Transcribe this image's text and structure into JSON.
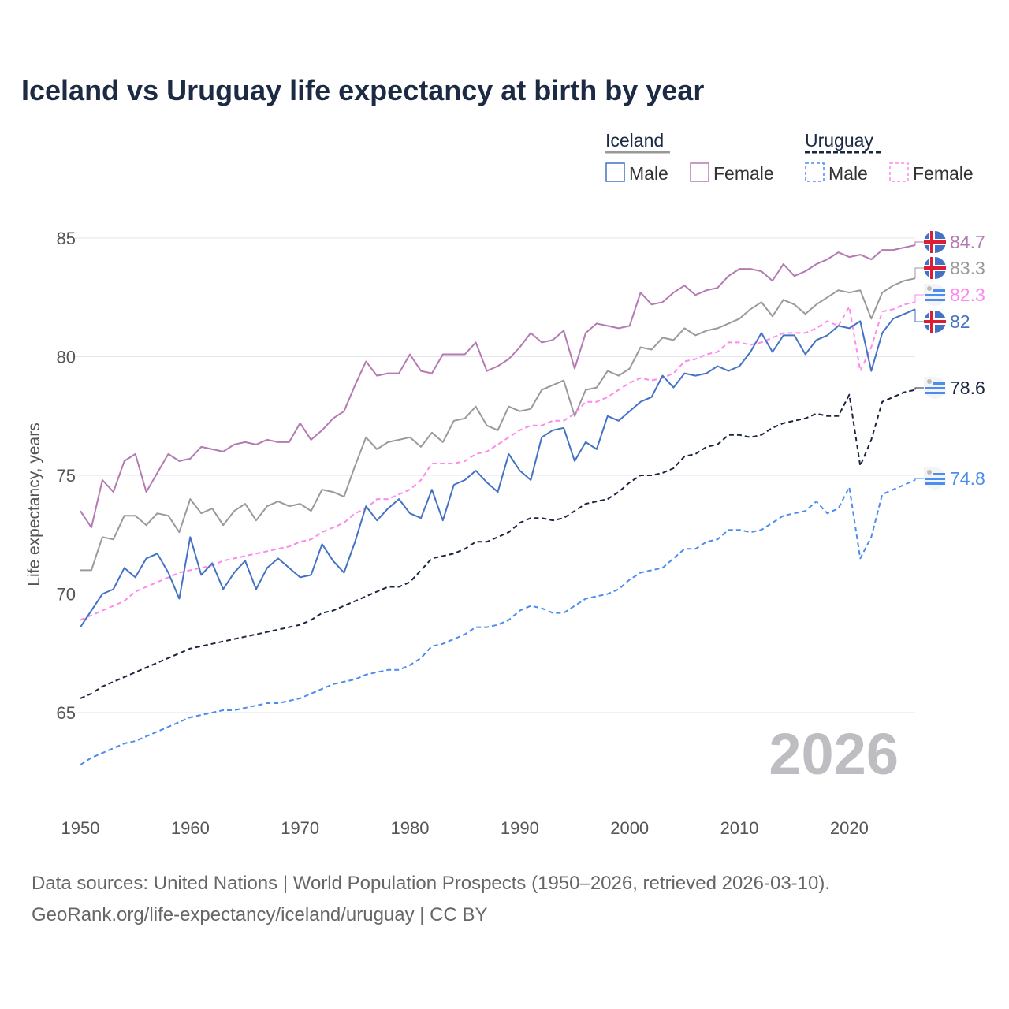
{
  "chart_data": {
    "type": "line",
    "title": "Iceland vs Uruguay life expectancy at birth by year",
    "xlabel": "",
    "ylabel": "Life expectancy, years",
    "xlim": [
      1950,
      2026
    ],
    "ylim": [
      62.5,
      86
    ],
    "x_ticks": [
      1950,
      1960,
      1970,
      1980,
      1990,
      2000,
      2010,
      2020
    ],
    "y_ticks": [
      65,
      70,
      75,
      80,
      85
    ],
    "grid": true,
    "legend_position": "top-right",
    "legend_groups": [
      {
        "name": "Iceland",
        "items": [
          "Male",
          "Female"
        ]
      },
      {
        "name": "Uruguay",
        "items": [
          "Male",
          "Female"
        ]
      }
    ],
    "watermark_year": "2026",
    "x_start": 1950,
    "series": [
      {
        "name": "Iceland Female",
        "country": "Iceland",
        "color": "#b47ab2",
        "dashed": false,
        "end_label": "84.7",
        "values": [
          73.5,
          72.8,
          74.8,
          74.3,
          75.6,
          75.9,
          74.3,
          75.1,
          75.9,
          75.6,
          75.7,
          76.2,
          76.1,
          76.0,
          76.3,
          76.4,
          76.3,
          76.5,
          76.4,
          76.4,
          77.2,
          76.5,
          76.9,
          77.4,
          77.7,
          78.8,
          79.8,
          79.2,
          79.3,
          79.3,
          80.1,
          79.4,
          79.3,
          80.1,
          80.1,
          80.1,
          80.6,
          79.4,
          79.6,
          79.9,
          80.4,
          81.0,
          80.6,
          80.7,
          81.1,
          79.5,
          81.0,
          81.4,
          81.3,
          81.2,
          81.3,
          82.7,
          82.2,
          82.3,
          82.7,
          83.0,
          82.6,
          82.8,
          82.9,
          83.4,
          83.7,
          83.7,
          83.6,
          83.2,
          83.9,
          83.4,
          83.6,
          83.9,
          84.1,
          84.4,
          84.2,
          84.3,
          84.1,
          84.5,
          84.5,
          84.6,
          84.7
        ]
      },
      {
        "name": "Iceland",
        "country": "Iceland",
        "color": "#9a9a9a",
        "dashed": false,
        "end_label": "83.3",
        "values": [
          71.0,
          71.0,
          72.4,
          72.3,
          73.3,
          73.3,
          72.9,
          73.4,
          73.3,
          72.6,
          74.0,
          73.4,
          73.6,
          72.9,
          73.5,
          73.8,
          73.1,
          73.7,
          73.9,
          73.7,
          73.8,
          73.5,
          74.4,
          74.3,
          74.1,
          75.4,
          76.6,
          76.1,
          76.4,
          76.5,
          76.6,
          76.2,
          76.8,
          76.4,
          77.3,
          77.4,
          77.9,
          77.1,
          76.9,
          77.9,
          77.7,
          77.8,
          78.6,
          78.8,
          79.0,
          77.5,
          78.6,
          78.7,
          79.4,
          79.2,
          79.5,
          80.4,
          80.3,
          80.8,
          80.7,
          81.2,
          80.9,
          81.1,
          81.2,
          81.4,
          81.6,
          82.0,
          82.3,
          81.7,
          82.4,
          82.2,
          81.8,
          82.2,
          82.5,
          82.8,
          82.7,
          82.8,
          81.6,
          82.7,
          83.0,
          83.2,
          83.3
        ]
      },
      {
        "name": "Uruguay Female",
        "country": "Uruguay",
        "color": "#ff88ee",
        "dashed": true,
        "end_label": "82.3",
        "values": [
          68.9,
          69.1,
          69.3,
          69.5,
          69.7,
          70.1,
          70.3,
          70.5,
          70.7,
          70.9,
          71.0,
          71.1,
          71.2,
          71.4,
          71.5,
          71.6,
          71.7,
          71.8,
          71.9,
          72.0,
          72.2,
          72.3,
          72.6,
          72.8,
          73.0,
          73.4,
          73.6,
          74.0,
          74.0,
          74.2,
          74.4,
          74.8,
          75.5,
          75.5,
          75.5,
          75.6,
          75.9,
          76.0,
          76.3,
          76.6,
          76.9,
          77.1,
          77.1,
          77.3,
          77.3,
          77.6,
          78.1,
          78.1,
          78.3,
          78.6,
          78.9,
          79.1,
          79.0,
          79.1,
          79.3,
          79.8,
          79.9,
          80.1,
          80.2,
          80.6,
          80.6,
          80.5,
          80.6,
          80.8,
          81.0,
          81.0,
          81.0,
          81.2,
          81.5,
          81.3,
          82.1,
          79.4,
          80.4,
          81.9,
          82.0,
          82.2,
          82.3
        ]
      },
      {
        "name": "Iceland Male",
        "country": "Iceland",
        "color": "#4472c4",
        "dashed": false,
        "end_label": "82",
        "values": [
          68.6,
          69.3,
          70.0,
          70.2,
          71.1,
          70.7,
          71.5,
          71.7,
          70.9,
          69.8,
          72.4,
          70.8,
          71.3,
          70.2,
          70.9,
          71.4,
          70.2,
          71.1,
          71.5,
          71.1,
          70.7,
          70.8,
          72.1,
          71.4,
          70.9,
          72.2,
          73.7,
          73.1,
          73.6,
          74.0,
          73.4,
          73.2,
          74.4,
          73.1,
          74.6,
          74.8,
          75.2,
          74.7,
          74.3,
          75.9,
          75.2,
          74.8,
          76.6,
          76.9,
          77.0,
          75.6,
          76.4,
          76.1,
          77.5,
          77.3,
          77.7,
          78.1,
          78.3,
          79.2,
          78.7,
          79.3,
          79.2,
          79.3,
          79.6,
          79.4,
          79.6,
          80.2,
          81.0,
          80.2,
          80.9,
          80.9,
          80.1,
          80.7,
          80.9,
          81.3,
          81.2,
          81.5,
          79.4,
          81.0,
          81.6,
          81.8,
          82.0
        ]
      },
      {
        "name": "Uruguay",
        "country": "Uruguay",
        "color": "#1a2540",
        "dashed": true,
        "end_label": "78.6",
        "values": [
          65.6,
          65.8,
          66.1,
          66.3,
          66.5,
          66.7,
          66.9,
          67.1,
          67.3,
          67.5,
          67.7,
          67.8,
          67.9,
          68.0,
          68.1,
          68.2,
          68.3,
          68.4,
          68.5,
          68.6,
          68.7,
          68.9,
          69.2,
          69.3,
          69.5,
          69.7,
          69.9,
          70.1,
          70.3,
          70.3,
          70.5,
          71.0,
          71.5,
          71.6,
          71.7,
          71.9,
          72.2,
          72.2,
          72.4,
          72.6,
          73.0,
          73.2,
          73.2,
          73.1,
          73.2,
          73.5,
          73.8,
          73.9,
          74.0,
          74.3,
          74.7,
          75.0,
          75.0,
          75.1,
          75.3,
          75.8,
          75.9,
          76.2,
          76.3,
          76.7,
          76.7,
          76.6,
          76.7,
          77.0,
          77.2,
          77.3,
          77.4,
          77.6,
          77.5,
          77.5,
          78.4,
          75.4,
          76.5,
          78.1,
          78.3,
          78.5,
          78.6
        ]
      },
      {
        "name": "Uruguay Male",
        "country": "Uruguay",
        "color": "#4a8cf0",
        "dashed": true,
        "end_label": "74.8",
        "values": [
          62.8,
          63.1,
          63.3,
          63.5,
          63.7,
          63.8,
          64.0,
          64.2,
          64.4,
          64.6,
          64.8,
          64.9,
          65.0,
          65.1,
          65.1,
          65.2,
          65.3,
          65.4,
          65.4,
          65.5,
          65.6,
          65.8,
          66.0,
          66.2,
          66.3,
          66.4,
          66.6,
          66.7,
          66.8,
          66.8,
          67.0,
          67.3,
          67.8,
          67.9,
          68.1,
          68.3,
          68.6,
          68.6,
          68.7,
          68.9,
          69.3,
          69.5,
          69.4,
          69.2,
          69.2,
          69.5,
          69.8,
          69.9,
          70.0,
          70.2,
          70.6,
          70.9,
          71.0,
          71.1,
          71.5,
          71.9,
          71.9,
          72.2,
          72.3,
          72.7,
          72.7,
          72.6,
          72.7,
          73.0,
          73.3,
          73.4,
          73.5,
          73.9,
          73.4,
          73.6,
          74.5,
          71.5,
          72.4,
          74.2,
          74.4,
          74.6,
          74.8
        ]
      }
    ]
  },
  "footer": {
    "line1": "Data sources: United Nations | World Population Prospects (1950–2026, retrieved 2026-03-10).",
    "line2": "GeoRank.org/life-expectancy/iceland/uruguay | CC BY"
  }
}
